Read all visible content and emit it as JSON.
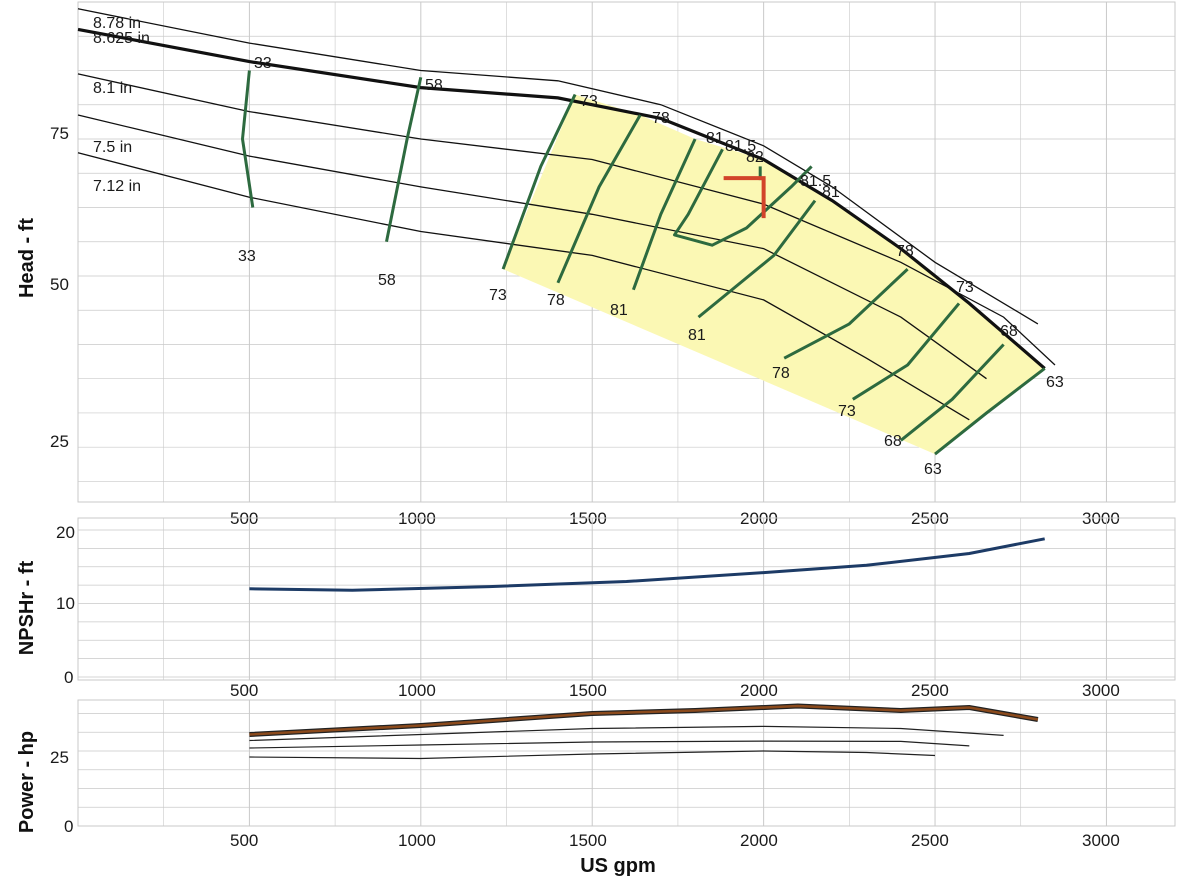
{
  "chart_data": [
    {
      "panel": "head",
      "type": "line",
      "ylabel": "Head - ft",
      "xlim": [
        0,
        3200
      ],
      "ylim": [
        17,
        90
      ],
      "x_ticks": [
        500,
        1000,
        1500,
        2000,
        2500,
        3000
      ],
      "y_ticks": [
        25,
        50,
        75
      ],
      "grid": true,
      "impeller_curves": [
        {
          "name": "8.78 in",
          "bold": false,
          "points": [
            [
              0,
              89
            ],
            [
              500,
              84
            ],
            [
              1000,
              80
            ],
            [
              1400,
              78.5
            ],
            [
              1700,
              75
            ],
            [
              2000,
              69
            ],
            [
              2200,
              63
            ],
            [
              2500,
              52
            ],
            [
              2800,
              43
            ]
          ]
        },
        {
          "name": "8.625 in",
          "bold": true,
          "points": [
            [
              0,
              86
            ],
            [
              500,
              81.3
            ],
            [
              1000,
              77.5
            ],
            [
              1400,
              76
            ],
            [
              1700,
              73
            ],
            [
              2000,
              67
            ],
            [
              2200,
              61
            ],
            [
              2400,
              54
            ],
            [
              2600,
              46
            ],
            [
              2820,
              36.5
            ]
          ]
        },
        {
          "name": "8.1 in",
          "bold": false,
          "points": [
            [
              0,
              79.5
            ],
            [
              500,
              74
            ],
            [
              1000,
              70
            ],
            [
              1500,
              67
            ],
            [
              2000,
              60.5
            ],
            [
              2400,
              52
            ],
            [
              2700,
              44
            ],
            [
              2850,
              37
            ]
          ]
        },
        {
          "name": "7.5 in",
          "bold": false,
          "points": [
            [
              0,
              73.5
            ],
            [
              500,
              67.5
            ],
            [
              1000,
              63
            ],
            [
              1500,
              59
            ],
            [
              2000,
              54
            ],
            [
              2400,
              44
            ],
            [
              2650,
              35
            ]
          ]
        },
        {
          "name": "7.12 in",
          "bold": false,
          "points": [
            [
              0,
              68
            ],
            [
              500,
              61.5
            ],
            [
              1000,
              56.5
            ],
            [
              1500,
              53
            ],
            [
              2000,
              46.5
            ],
            [
              2300,
              38
            ],
            [
              2600,
              29
            ]
          ]
        }
      ],
      "efficiency_contours": [
        {
          "label": "33",
          "points": [
            [
              500,
              80
            ],
            [
              480,
              70
            ],
            [
              510,
              60
            ]
          ]
        },
        {
          "label": "58",
          "points": [
            [
              1000,
              79
            ],
            [
              960,
              70
            ],
            [
              900,
              55
            ]
          ]
        },
        {
          "label": "73",
          "points": [
            [
              1450,
              76.5
            ],
            [
              1350,
              66
            ],
            [
              1240,
              51
            ]
          ]
        },
        {
          "label": "78",
          "points": [
            [
              1640,
              73.5
            ],
            [
              1520,
              63
            ],
            [
              1400,
              49
            ]
          ]
        },
        {
          "label": "81",
          "points": [
            [
              1800,
              70
            ],
            [
              1700,
              59
            ],
            [
              1620,
              48
            ]
          ]
        },
        {
          "label": "81.5",
          "points": [
            [
              1880,
              68.5
            ],
            [
              1780,
              59
            ],
            [
              1740,
              56
            ],
            [
              1850,
              54.5
            ],
            [
              1950,
              57
            ],
            [
              2080,
              63
            ],
            [
              2140,
              66
            ]
          ]
        },
        {
          "label": "82",
          "points": [
            [
              1990,
              66
            ],
            [
              1990,
              64
            ]
          ]
        },
        {
          "label": "81",
          "points": [
            [
              2150,
              61
            ],
            [
              2030,
              53
            ],
            [
              1810,
              44
            ]
          ]
        },
        {
          "label": "78",
          "points": [
            [
              2420,
              51
            ],
            [
              2250,
              43
            ],
            [
              2060,
              38
            ]
          ]
        },
        {
          "label": "73",
          "points": [
            [
              2570,
              46
            ],
            [
              2420,
              37
            ],
            [
              2260,
              32
            ]
          ]
        },
        {
          "label": "68",
          "points": [
            [
              2700,
              40
            ],
            [
              2550,
              32
            ],
            [
              2400,
              26
            ]
          ]
        },
        {
          "label": "63",
          "points": [
            [
              2820,
              36.5
            ],
            [
              2650,
              30
            ],
            [
              2500,
              24
            ]
          ]
        }
      ],
      "efficiency_labels": [
        "33",
        "58",
        "73",
        "78",
        "81",
        "81.5",
        "82",
        "81.5",
        "81",
        "78",
        "73",
        "68",
        "63",
        "33",
        "58",
        "73",
        "78",
        "81",
        "81",
        "78",
        "73",
        "68",
        "63"
      ],
      "operating_point": {
        "flow": 2000,
        "head": 64
      }
    },
    {
      "panel": "npsh",
      "type": "line",
      "ylabel": "NPSHr - ft",
      "xlim": [
        0,
        3200
      ],
      "ylim": [
        0,
        20
      ],
      "x_ticks": [
        500,
        1000,
        1500,
        2000,
        2500,
        3000
      ],
      "y_ticks": [
        0,
        10,
        20
      ],
      "grid": true,
      "series": [
        {
          "points": [
            [
              500,
              12
            ],
            [
              800,
              11.8
            ],
            [
              1200,
              12.3
            ],
            [
              1600,
              13
            ],
            [
              2000,
              14.2
            ],
            [
              2300,
              15.2
            ],
            [
              2600,
              16.8
            ],
            [
              2820,
              18.8
            ]
          ]
        }
      ]
    },
    {
      "panel": "power",
      "type": "line",
      "ylabel": "Power - hp",
      "xlabel": "US gpm",
      "xlim": [
        0,
        3200
      ],
      "ylim": [
        0,
        42
      ],
      "x_ticks": [
        500,
        1000,
        1500,
        2000,
        2500,
        3000
      ],
      "y_ticks": [
        0,
        25
      ],
      "grid": true,
      "series": [
        {
          "bold": true,
          "points": [
            [
              500,
              30.5
            ],
            [
              1000,
              33.5
            ],
            [
              1500,
              37.5
            ],
            [
              1800,
              38.5
            ],
            [
              2100,
              40
            ],
            [
              2400,
              38.5
            ],
            [
              2600,
              39.5
            ],
            [
              2800,
              35.5
            ]
          ]
        },
        {
          "bold": false,
          "points": [
            [
              500,
              28.5
            ],
            [
              1000,
              30.5
            ],
            [
              1500,
              32.5
            ],
            [
              2000,
              33.2
            ],
            [
              2400,
              32.5
            ],
            [
              2700,
              30.2
            ]
          ]
        },
        {
          "bold": false,
          "points": [
            [
              500,
              26
            ],
            [
              1000,
              27
            ],
            [
              1500,
              28
            ],
            [
              2000,
              28.3
            ],
            [
              2400,
              28.2
            ],
            [
              2600,
              26.7
            ]
          ]
        },
        {
          "bold": false,
          "points": [
            [
              500,
              23
            ],
            [
              1000,
              22.5
            ],
            [
              1500,
              24
            ],
            [
              2000,
              25
            ],
            [
              2300,
              24.5
            ],
            [
              2500,
              23.5
            ]
          ]
        }
      ]
    }
  ],
  "styles": {
    "shade_color": "#fbf8b4",
    "efficiency_color": "#2d6a3f",
    "operating_point_color": "#d2442a",
    "npsh_color": "#1d3b66",
    "power_bold_color": "#8b4a1c",
    "grid_color": "#c9c9c9"
  }
}
